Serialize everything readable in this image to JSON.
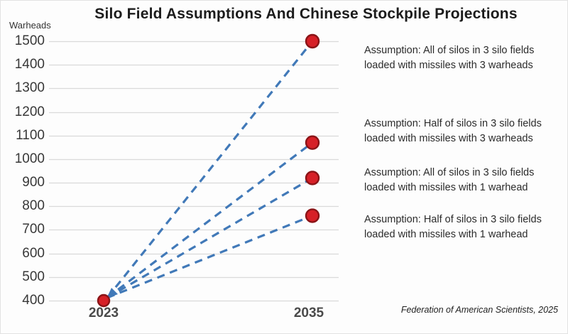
{
  "attribution": "Federation of American Scientists, 2025",
  "chart_data": {
    "type": "line",
    "title": "Silo Field Assumptions And Chinese Stockpile Projections",
    "ylabel": "Warheads",
    "xlabel": "",
    "x_categories": [
      "2023",
      "2035"
    ],
    "ylim": [
      400,
      1500
    ],
    "y_ticks": [
      400,
      500,
      600,
      700,
      800,
      900,
      1000,
      1100,
      1200,
      1300,
      1400,
      1500
    ],
    "grid": "horizontal",
    "legend_position": "right-annotations",
    "line_style": "dashed",
    "start_point": {
      "year": "2023",
      "value": 400
    },
    "series": [
      {
        "name": "All of silos in 3 silo fields loaded with missiles with 3 warheads",
        "values": [
          400,
          1500
        ]
      },
      {
        "name": "Half of silos in 3 silo fields loaded with missiles with 3 warheads",
        "values": [
          400,
          1070
        ]
      },
      {
        "name": "All of silos in 3 silo fields loaded with missiles with 1 warhead",
        "values": [
          400,
          920
        ]
      },
      {
        "name": "Half of silos in 3 silo fields loaded with missiles with 1 warhead",
        "values": [
          400,
          760
        ]
      }
    ],
    "annotations": [
      {
        "value": 1500,
        "lines": [
          "Assumption: All of silos in 3 silo fields",
          "loaded with missiles with 3 warheads"
        ]
      },
      {
        "value": 1070,
        "lines": [
          "Assumption: Half of silos in 3 silo fields",
          "loaded with missiles with 3 warheads"
        ]
      },
      {
        "value": 920,
        "lines": [
          "Assumption: All of silos in 3 silo fields",
          "loaded with missiles with 1 warhead"
        ]
      },
      {
        "value": 760,
        "lines": [
          "Assumption: Half of silos in 3 silo fields",
          "loaded with missiles with 1 warhead"
        ]
      }
    ],
    "colors": {
      "line": "#4179b8",
      "marker_fill": "#d62027",
      "marker_edge": "#8a1417",
      "grid": "#dadada"
    }
  }
}
